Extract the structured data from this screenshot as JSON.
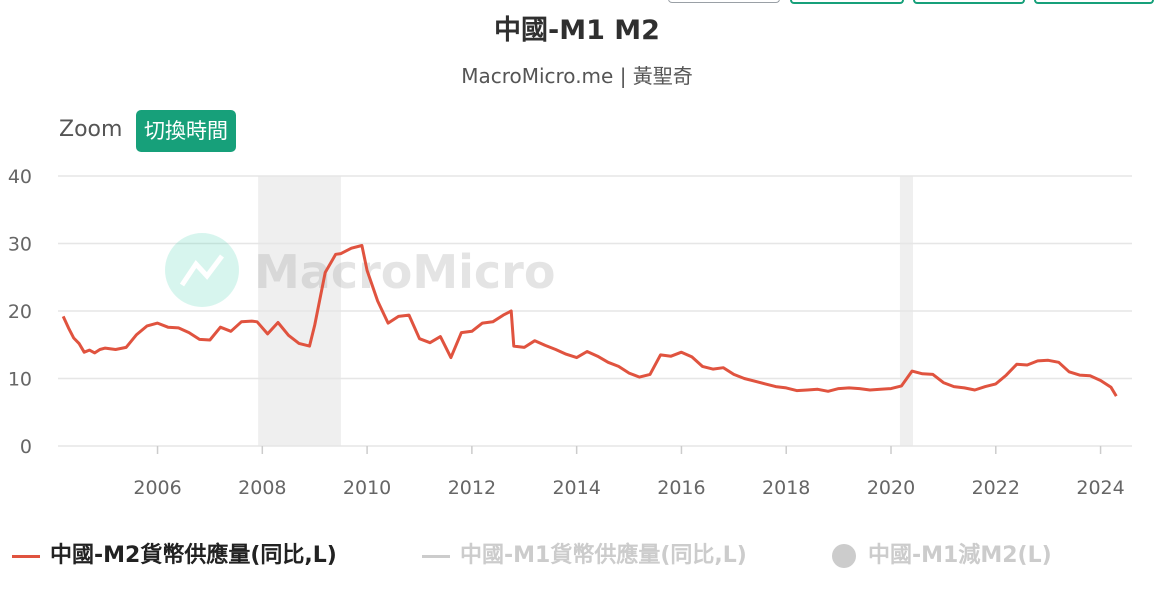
{
  "header": {
    "title": "中國-M1 M2",
    "subtitle": "MacroMicro.me | 黃聖奇"
  },
  "toolbar": {
    "zoom_label": "Zoom",
    "toggle_time_label": "切換時間"
  },
  "watermark": "MacroMicro",
  "colors": {
    "m2_line": "#e0533f",
    "m1_line": "#cccccc",
    "band": "#efefef",
    "accent": "#17a07a",
    "grid": "#e6e6e6"
  },
  "chart_data": {
    "type": "line",
    "title": "中國-M1 M2",
    "subtitle": "MacroMicro.me | 黃聖奇",
    "xlim": [
      2004.1,
      2024.6
    ],
    "ylim": [
      0,
      40
    ],
    "y_ticks": [
      "0",
      "10",
      "20",
      "30",
      "40"
    ],
    "x_ticks": [
      "2006",
      "2008",
      "2010",
      "2012",
      "2014",
      "2016",
      "2018",
      "2020",
      "2022",
      "2024"
    ],
    "grid": true,
    "legend_position": "bottom",
    "shaded_ranges": [
      [
        2007.92,
        2009.5
      ],
      [
        2020.17,
        2020.42
      ]
    ],
    "series": [
      {
        "name": "中國-M2貨幣供應量(同比,L)",
        "visible": true,
        "x": [
          2004.2,
          2004.3,
          2004.4,
          2004.5,
          2004.6,
          2004.7,
          2004.8,
          2004.9,
          2005.0,
          2005.2,
          2005.4,
          2005.6,
          2005.8,
          2006.0,
          2006.2,
          2006.4,
          2006.6,
          2006.8,
          2007.0,
          2007.2,
          2007.4,
          2007.6,
          2007.8,
          2007.9,
          2008.1,
          2008.3,
          2008.5,
          2008.7,
          2008.9,
          2009.0,
          2009.2,
          2009.4,
          2009.5,
          2009.7,
          2009.9,
          2010.0,
          2010.2,
          2010.4,
          2010.6,
          2010.8,
          2011.0,
          2011.2,
          2011.4,
          2011.6,
          2011.8,
          2012.0,
          2012.2,
          2012.4,
          2012.6,
          2012.75,
          2012.8,
          2013.0,
          2013.2,
          2013.4,
          2013.6,
          2013.8,
          2014.0,
          2014.2,
          2014.4,
          2014.6,
          2014.8,
          2015.0,
          2015.2,
          2015.4,
          2015.6,
          2015.8,
          2016.0,
          2016.2,
          2016.4,
          2016.6,
          2016.8,
          2017.0,
          2017.2,
          2017.4,
          2017.6,
          2017.8,
          2018.0,
          2018.2,
          2018.4,
          2018.6,
          2018.8,
          2019.0,
          2019.2,
          2019.4,
          2019.6,
          2019.8,
          2020.0,
          2020.2,
          2020.4,
          2020.6,
          2020.8,
          2021.0,
          2021.2,
          2021.4,
          2021.6,
          2021.8,
          2022.0,
          2022.2,
          2022.4,
          2022.6,
          2022.8,
          2023.0,
          2023.2,
          2023.4,
          2023.6,
          2023.8,
          2024.0,
          2024.2,
          2024.3
        ],
        "y": [
          19.2,
          17.5,
          16.0,
          15.2,
          13.9,
          14.2,
          13.8,
          14.3,
          14.5,
          14.3,
          14.6,
          16.5,
          17.8,
          18.2,
          17.6,
          17.5,
          16.8,
          15.8,
          15.7,
          17.6,
          17.0,
          18.4,
          18.5,
          18.4,
          16.6,
          18.3,
          16.4,
          15.2,
          14.8,
          17.9,
          25.7,
          28.4,
          28.5,
          29.3,
          29.7,
          26.0,
          21.5,
          18.2,
          19.2,
          19.4,
          15.9,
          15.3,
          16.2,
          13.1,
          16.8,
          17.0,
          18.2,
          18.4,
          19.4,
          20.0,
          14.8,
          14.6,
          15.6,
          14.9,
          14.3,
          13.6,
          13.1,
          14.0,
          13.3,
          12.4,
          11.8,
          10.8,
          10.2,
          10.6,
          13.5,
          13.3,
          13.9,
          13.2,
          11.8,
          11.4,
          11.6,
          10.6,
          10.0,
          9.6,
          9.2,
          8.8,
          8.6,
          8.2,
          8.3,
          8.4,
          8.1,
          8.5,
          8.6,
          8.5,
          8.3,
          8.4,
          8.5,
          8.9,
          11.1,
          10.7,
          10.6,
          9.4,
          8.8,
          8.6,
          8.3,
          8.8,
          9.2,
          10.5,
          12.1,
          12.0,
          12.6,
          12.7,
          12.4,
          11.0,
          10.5,
          10.4,
          9.7,
          8.7,
          7.4
        ]
      },
      {
        "name": "中國-M1貨幣供應量(同比,L)",
        "visible": false
      },
      {
        "name": "中國-M1減M2(L)",
        "visible": false
      }
    ]
  },
  "legend": {
    "m2": "中國-M2貨幣供應量(同比,L)",
    "m1": "中國-M1貨幣供應量(同比,L)",
    "diff": "中國-M1減M2(L)"
  }
}
